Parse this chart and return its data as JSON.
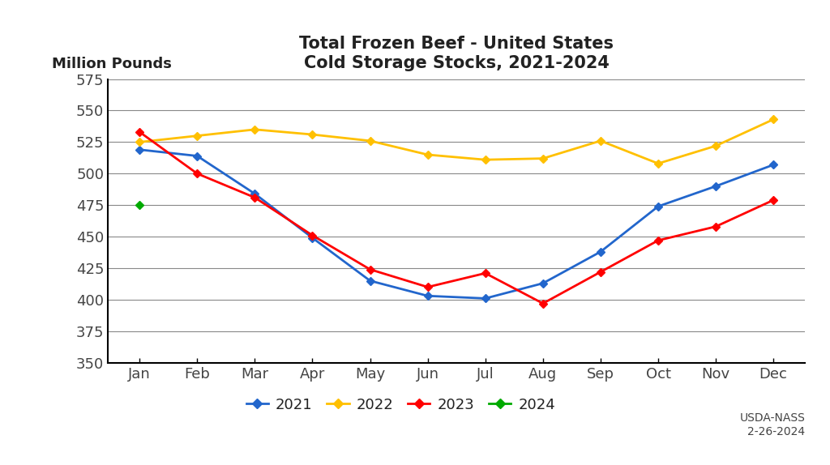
{
  "title_line1": "Total Frozen Beef - United States",
  "title_line2": "Cold Storage Stocks, 2021-2024",
  "ylabel": "Million Pounds",
  "months": [
    "Jan",
    "Feb",
    "Mar",
    "Apr",
    "May",
    "Jun",
    "Jul",
    "Aug",
    "Sep",
    "Oct",
    "Nov",
    "Dec"
  ],
  "series": {
    "2021": [
      519,
      514,
      484,
      449,
      415,
      403,
      401,
      413,
      438,
      474,
      490,
      507
    ],
    "2022": [
      525,
      530,
      535,
      531,
      526,
      515,
      511,
      512,
      526,
      508,
      522,
      543
    ],
    "2023": [
      533,
      500,
      481,
      451,
      424,
      410,
      421,
      397,
      422,
      447,
      458,
      479
    ],
    "2024": [
      475
    ]
  },
  "colors": {
    "2021": "#2266CC",
    "2022": "#FFC000",
    "2023": "#FF0000",
    "2024": "#00AA00"
  },
  "ylim": [
    350,
    575
  ],
  "yticks": [
    350,
    375,
    400,
    425,
    450,
    475,
    500,
    525,
    550,
    575
  ],
  "annotation": "USDA-NASS\n2-26-2024",
  "background_color": "#ffffff",
  "plot_background": "#ffffff",
  "grid_color": "#888888",
  "title_fontsize": 15,
  "axis_label_fontsize": 13,
  "tick_fontsize": 13,
  "legend_fontsize": 13
}
